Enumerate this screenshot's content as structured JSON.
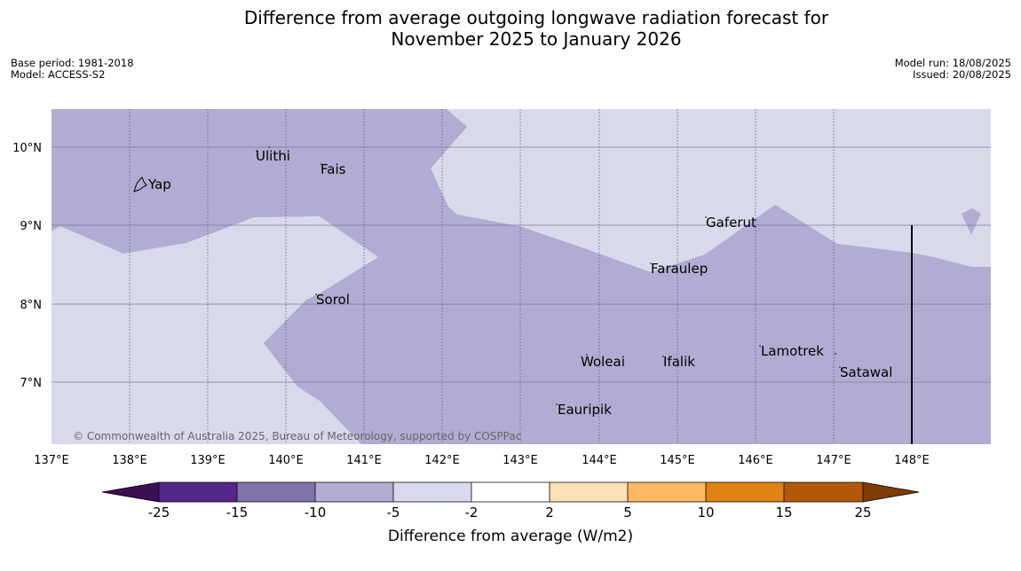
{
  "title": {
    "line1": "Difference from average outgoing longwave radiation forecast for",
    "line2": "November 2025 to January 2026"
  },
  "meta_left": {
    "base_period": "Base period: 1981-2018",
    "model": "Model: ACCESS-S2"
  },
  "meta_right": {
    "model_run": "Model run: 18/08/2025",
    "issued": "Issued: 20/08/2025"
  },
  "map": {
    "lon_range": [
      137,
      149
    ],
    "lat_range": [
      6.2,
      10.5
    ],
    "lon_ticks": [
      "137°E",
      "138°E",
      "139°E",
      "140°E",
      "141°E",
      "142°E",
      "143°E",
      "144°E",
      "145°E",
      "146°E",
      "147°E",
      "148°E"
    ],
    "lat_ticks": [
      "10°N",
      "9°N",
      "8°N",
      "7°N"
    ],
    "copyright": "© Commonwealth of Australia 2025, Bureau of Meteorology, supported by COSPPac",
    "places": [
      {
        "name": "Yap",
        "lon": 138.35,
        "lat": 9.5
      },
      {
        "name": "Ulithi",
        "lon": 139.7,
        "lat": 9.9
      },
      {
        "name": "Fais",
        "lon": 140.45,
        "lat": 9.75
      },
      {
        "name": "Gaferut",
        "lon": 145.4,
        "lat": 9.05
      },
      {
        "name": "Faraulep",
        "lon": 144.7,
        "lat": 8.45
      },
      {
        "name": "Sorol",
        "lon": 140.4,
        "lat": 8.05
      },
      {
        "name": "Lamotrek",
        "lon": 146.1,
        "lat": 7.4
      },
      {
        "name": "Woleai",
        "lon": 143.9,
        "lat": 7.3
      },
      {
        "name": "Ifalik",
        "lon": 144.85,
        "lat": 7.3
      },
      {
        "name": "Satawal",
        "lon": 147.05,
        "lat": 7.15
      },
      {
        "name": "Eauripik",
        "lon": 143.05,
        "lat": 6.7
      }
    ]
  },
  "colorbar": {
    "label": "Difference from average (W/m2)",
    "ticks": [
      "-25",
      "-15",
      "-10",
      "-5",
      "-2",
      "2",
      "5",
      "10",
      "15",
      "25"
    ],
    "low_extend_color": "#3b0f54",
    "high_extend_color": "#7f3b08",
    "colors": [
      "#542788",
      "#8073ac",
      "#b2abd2",
      "#d8daeb",
      "#ffffff",
      "#fee0b6",
      "#fdb863",
      "#e08214",
      "#b35806"
    ]
  },
  "colors": {
    "category_m10_m5": "#b2abd2",
    "category_m5_m2": "#d8daeb"
  }
}
